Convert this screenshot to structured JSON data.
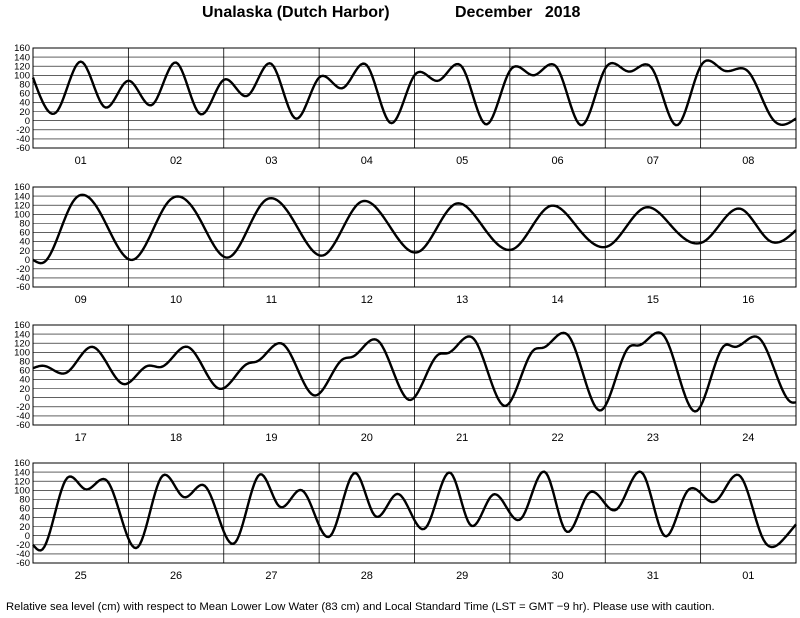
{
  "title": {
    "location": "Unalaska (Dutch Harbor)",
    "period": "December   2018"
  },
  "caption": "Relative sea level (cm) with respect to Mean Lower Low Water (83 cm) and Local Standard Time (LST = GMT −9 hr). Please use with caution.",
  "chart_data": {
    "type": "line",
    "ylabel": "",
    "ylim": [
      -60,
      160
    ],
    "yticks": [
      -60,
      -40,
      -20,
      0,
      20,
      40,
      60,
      80,
      100,
      120,
      140,
      160
    ],
    "grid": true,
    "panels": [
      {
        "days": [
          "01",
          "02",
          "03",
          "04",
          "05",
          "06",
          "07",
          "08"
        ],
        "x": [
          0,
          0.25,
          0.5,
          0.75,
          1,
          1.25,
          1.5,
          1.75,
          2,
          2.25,
          2.5,
          2.75,
          3,
          3.25,
          3.5,
          3.75,
          4,
          4.25,
          4.5,
          4.75,
          5,
          5.25,
          5.5,
          5.75,
          6,
          6.25,
          6.5,
          6.75,
          7,
          7.25,
          7.5,
          7.75,
          8
        ],
        "y": [
          95,
          20,
          130,
          30,
          88,
          35,
          128,
          15,
          90,
          55,
          125,
          5,
          95,
          72,
          122,
          -5,
          100,
          88,
          118,
          -8,
          110,
          100,
          115,
          -10,
          115,
          108,
          112,
          -10,
          120,
          110,
          108,
          5,
          5
        ]
      },
      {
        "days": [
          "09",
          "10",
          "11",
          "12",
          "13",
          "14",
          "15",
          "16"
        ],
        "x": [
          0,
          0.12,
          0.42,
          0.7,
          1.05,
          1.42,
          1.72,
          2.05,
          2.42,
          2.72,
          3.05,
          3.42,
          3.72,
          4.05,
          4.42,
          4.72,
          5.05,
          5.42,
          5.72,
          6.05,
          6.42,
          6.72,
          7.05,
          7.42,
          7.72,
          8
        ],
        "y": [
          0,
          -5,
          128,
          105,
          0,
          128,
          100,
          5,
          128,
          90,
          10,
          125,
          80,
          18,
          122,
          72,
          25,
          118,
          68,
          32,
          115,
          68,
          42,
          112,
          42,
          65
        ]
      },
      {
        "days": [
          "17",
          "18",
          "19",
          "20",
          "21",
          "22",
          "23",
          "24"
        ],
        "x": [
          0,
          0.12,
          0.35,
          0.62,
          0.95,
          1.2,
          1.35,
          1.62,
          1.95,
          2.25,
          2.35,
          2.62,
          2.95,
          3.25,
          3.35,
          3.62,
          3.95,
          4.25,
          4.35,
          4.62,
          4.95,
          5.25,
          5.35,
          5.62,
          5.95,
          6.25,
          6.35,
          6.62,
          6.95,
          7.25,
          7.35,
          7.62,
          7.95,
          8
        ],
        "y": [
          65,
          70,
          55,
          112,
          30,
          70,
          68,
          112,
          20,
          75,
          80,
          118,
          5,
          85,
          90,
          125,
          -5,
          95,
          98,
          130,
          -18,
          105,
          110,
          135,
          -28,
          112,
          115,
          135,
          -30,
          115,
          112,
          130,
          -10,
          -10
        ]
      },
      {
        "days": [
          "25",
          "26",
          "27",
          "28",
          "29",
          "30",
          "31",
          "01"
        ],
        "x": [
          0,
          0.1,
          0.35,
          0.55,
          0.78,
          1.1,
          1.35,
          1.58,
          1.8,
          2.12,
          2.38,
          2.58,
          2.82,
          3.12,
          3.38,
          3.58,
          3.82,
          4.12,
          4.38,
          4.58,
          4.82,
          5.12,
          5.38,
          5.58,
          5.82,
          6.12,
          6.4,
          6.62,
          6.85,
          7.15,
          7.42,
          7.65,
          7.88,
          8
        ],
        "y": [
          -20,
          -30,
          125,
          102,
          120,
          -25,
          130,
          85,
          110,
          -15,
          135,
          65,
          100,
          0,
          138,
          45,
          92,
          18,
          138,
          25,
          90,
          38,
          138,
          12,
          92,
          58,
          135,
          0,
          95,
          75,
          130,
          -5,
          -5,
          25
        ]
      }
    ]
  }
}
